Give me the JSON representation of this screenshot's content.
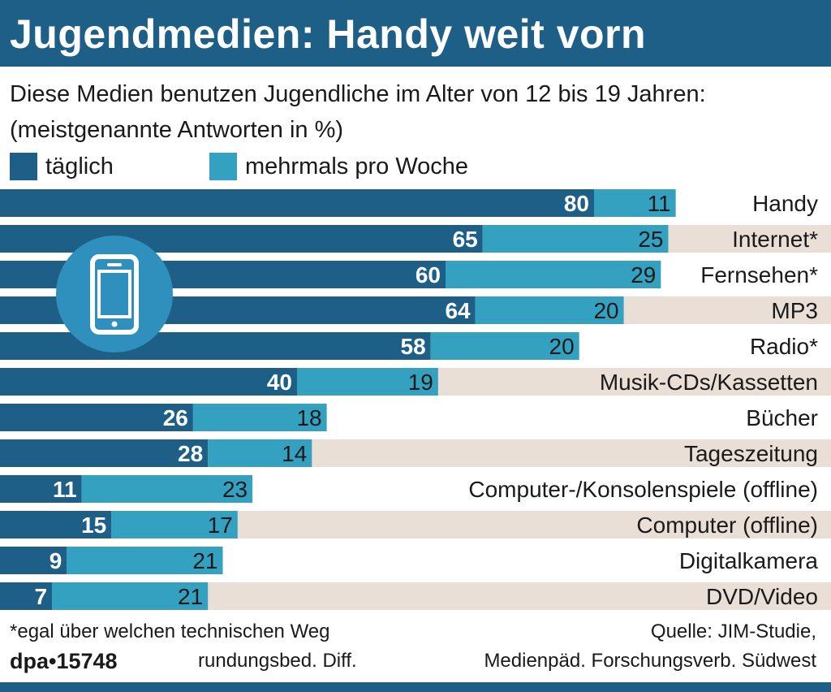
{
  "header": {
    "title": "Jugendmedien: Handy weit vorn",
    "subtitle_line1": "Diese Medien benutzen Jugendliche im Alter von 12 bis 19 Jahren:",
    "subtitle_line2": "(meistgenannte Antworten in %)"
  },
  "legend": {
    "daily": "täglich",
    "weekly": "mehrmals pro Woche"
  },
  "colors": {
    "daily": "#1d5f87",
    "weekly": "#35a1c0",
    "row_stripe": "#eadfd6",
    "icon_circle": "#2f8fbd",
    "icon_device": "#ffffff"
  },
  "icon": "mobile-phone-icon",
  "chart_data": {
    "type": "bar",
    "orientation": "horizontal",
    "stacked": true,
    "categories": [
      "Handy",
      "Internet*",
      "Fernsehen*",
      "MP3",
      "Radio*",
      "Musik-CDs/Kassetten",
      "Bücher",
      "Tageszeitung",
      "Computer-/Konsolenspiele (offline)",
      "Computer (offline)",
      "Digitalkamera",
      "DVD/Video"
    ],
    "series": [
      {
        "name": "täglich",
        "values": [
          80,
          65,
          60,
          64,
          58,
          40,
          26,
          28,
          11,
          15,
          9,
          7
        ]
      },
      {
        "name": "mehrmals pro Woche",
        "values": [
          11,
          25,
          29,
          20,
          20,
          19,
          18,
          14,
          23,
          17,
          21,
          21
        ]
      }
    ],
    "xlim": [
      0,
      100
    ],
    "legend_position": "top-left",
    "grid": false
  },
  "footer": {
    "note": "*egal über welchen technischen Weg",
    "rounding": "rundungsbed. Diff.",
    "logo": "dpa•15748",
    "source_line1": "Quelle: JIM-Studie,",
    "source_line2": "Medienpäd. Forschungsverb. Südwest"
  }
}
